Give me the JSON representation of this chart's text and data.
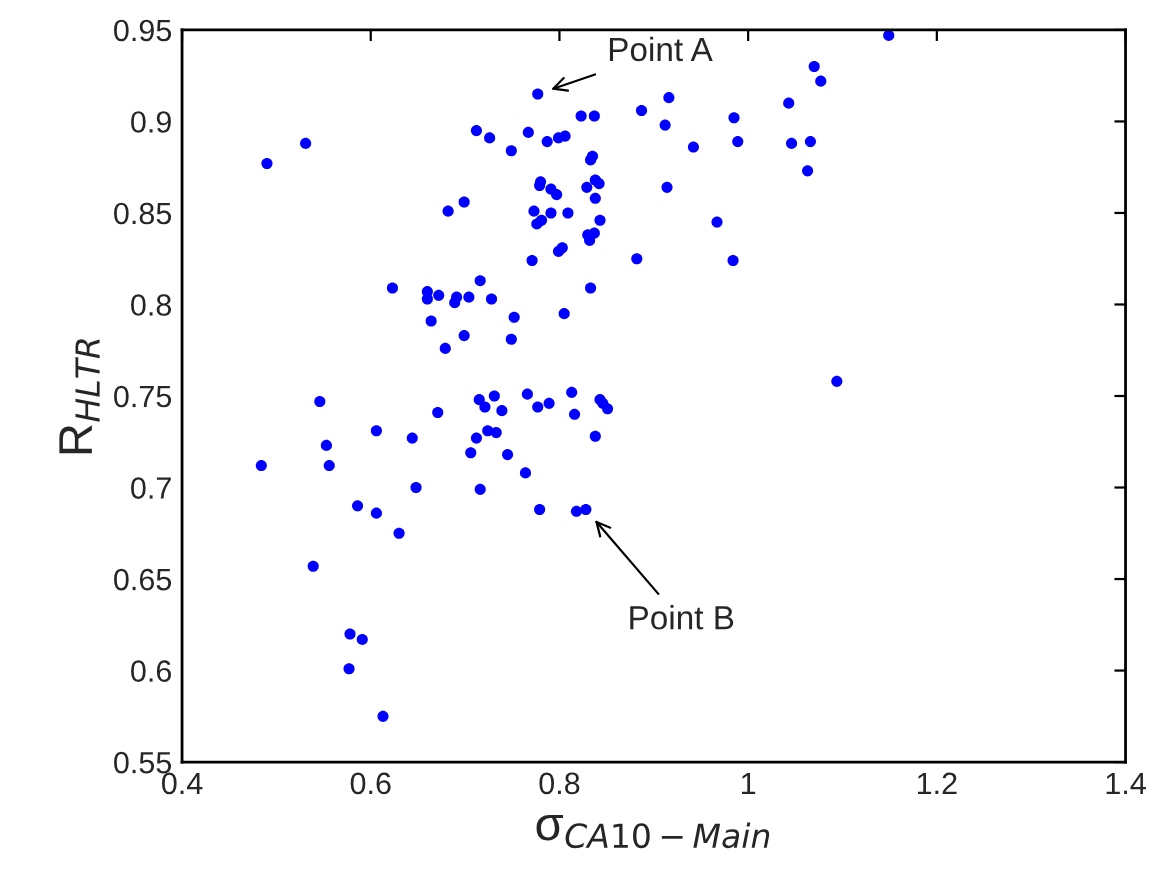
{
  "chart_data": {
    "type": "scatter",
    "xlabel": "σ$_{CA10−Main}$",
    "ylabel": "R$_{HLTR}$",
    "xlim": [
      0.4,
      1.4
    ],
    "ylim": [
      0.55,
      0.95
    ],
    "xticks": [
      0.4,
      0.6,
      0.8,
      1,
      1.2,
      1.4
    ],
    "yticks": [
      0.55,
      0.6,
      0.65,
      0.7,
      0.75,
      0.8,
      0.85,
      0.9,
      0.95
    ],
    "marker": "circle",
    "grid": false,
    "annotations": [
      {
        "text": "Point A",
        "x": 0.777,
        "y": 0.915
      },
      {
        "text": "Point B",
        "x": 0.828,
        "y": 0.688
      }
    ],
    "series": [
      {
        "color": "#0000ff",
        "x": [
          0.49,
          0.531,
          0.712,
          0.726,
          0.749,
          0.767,
          0.777,
          0.787,
          0.799,
          0.806,
          0.823,
          0.837,
          0.833,
          0.835,
          0.78,
          0.779,
          0.791,
          0.797,
          0.829,
          0.838,
          0.842,
          0.838,
          0.682,
          0.699,
          0.773,
          0.791,
          0.809,
          0.776,
          0.781,
          0.843,
          0.83,
          0.837,
          0.832,
          0.799,
          0.803,
          0.771,
          0.833,
          0.623,
          0.66,
          0.66,
          0.672,
          0.689,
          0.691,
          0.704,
          0.716,
          0.728,
          0.664,
          0.752,
          0.805,
          0.679,
          0.699,
          0.749,
          1.149,
          1.07,
          1.077,
          0.916,
          0.887,
          0.912,
          0.985,
          1.043,
          0.942,
          0.989,
          1.046,
          1.066,
          1.063,
          0.914,
          0.967,
          0.882,
          0.984,
          1.094,
          0.484,
          0.546,
          0.553,
          0.556,
          0.606,
          0.644,
          0.671,
          0.648,
          0.586,
          0.606,
          0.63,
          0.539,
          0.578,
          0.591,
          0.577,
          0.613,
          0.706,
          0.712,
          0.715,
          0.721,
          0.731,
          0.739,
          0.724,
          0.733,
          0.745,
          0.716,
          0.766,
          0.777,
          0.789,
          0.764,
          0.779,
          0.813,
          0.816,
          0.838,
          0.843,
          0.846,
          0.851,
          0.818,
          0.828
        ],
        "values": [
          0.877,
          0.888,
          0.895,
          0.891,
          0.884,
          0.894,
          0.915,
          0.889,
          0.891,
          0.892,
          0.903,
          0.903,
          0.879,
          0.881,
          0.867,
          0.865,
          0.863,
          0.86,
          0.864,
          0.868,
          0.866,
          0.858,
          0.851,
          0.856,
          0.851,
          0.85,
          0.85,
          0.844,
          0.846,
          0.846,
          0.838,
          0.839,
          0.835,
          0.829,
          0.831,
          0.824,
          0.809,
          0.809,
          0.807,
          0.803,
          0.805,
          0.801,
          0.804,
          0.804,
          0.813,
          0.803,
          0.791,
          0.793,
          0.795,
          0.776,
          0.783,
          0.781,
          0.947,
          0.93,
          0.922,
          0.913,
          0.906,
          0.898,
          0.902,
          0.91,
          0.886,
          0.889,
          0.888,
          0.889,
          0.873,
          0.864,
          0.845,
          0.825,
          0.824,
          0.758,
          0.712,
          0.747,
          0.723,
          0.712,
          0.731,
          0.727,
          0.741,
          0.7,
          0.69,
          0.686,
          0.675,
          0.657,
          0.62,
          0.617,
          0.601,
          0.575,
          0.719,
          0.727,
          0.748,
          0.744,
          0.75,
          0.742,
          0.731,
          0.73,
          0.718,
          0.699,
          0.751,
          0.744,
          0.746,
          0.708,
          0.688,
          0.752,
          0.74,
          0.728,
          0.748,
          0.746,
          0.743,
          0.687,
          0.688
        ]
      }
    ]
  }
}
